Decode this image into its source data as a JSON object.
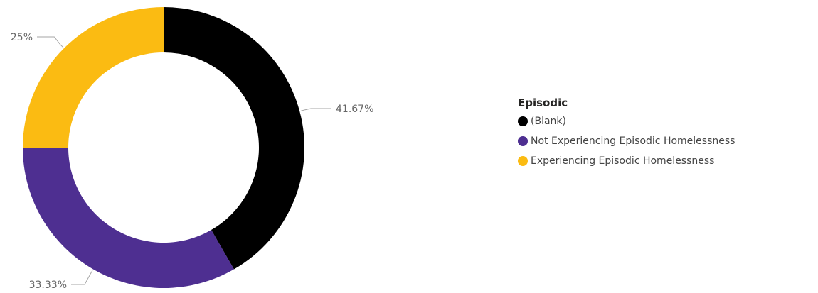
{
  "chart_data": {
    "type": "pie",
    "donut": true,
    "legend_title": "Episodic",
    "legend_position": "right",
    "categories": [
      "(Blank)",
      "Not Experiencing Episodic Homelessness",
      "Experiencing Episodic Homelessness"
    ],
    "values": [
      41.67,
      33.33,
      25
    ],
    "labels": [
      "41.67%",
      "33.33%",
      "25%"
    ],
    "colors": [
      "#000000",
      "#4e2f91",
      "#fbbb12"
    ]
  }
}
